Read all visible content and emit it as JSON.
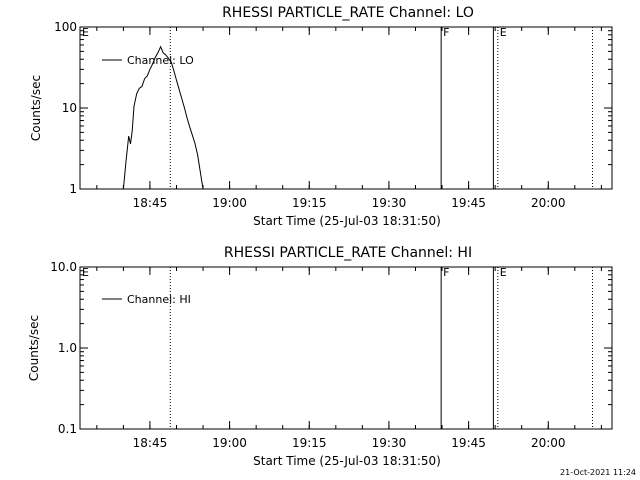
{
  "footer": {
    "timestamp": "21-Oct-2021 11:24"
  },
  "chart_data": [
    {
      "type": "line",
      "title": "RHESSI PARTICLE_RATE Channel: LO",
      "xlabel": "Start Time (25-Jul-03 18:31:50)",
      "ylabel": "Counts/sec",
      "y_scale": "log",
      "ylim": [
        1,
        100
      ],
      "y_ticks": [
        {
          "value": 1,
          "label": "1"
        },
        {
          "value": 10,
          "label": "10"
        },
        {
          "value": 100,
          "label": "100"
        }
      ],
      "xlim": [
        "18:31:50",
        "20:12:00"
      ],
      "x_ticks": [
        {
          "time": "18:45",
          "label": "18:45"
        },
        {
          "time": "19:00",
          "label": "19:00"
        },
        {
          "time": "19:15",
          "label": "19:15"
        },
        {
          "time": "19:30",
          "label": "19:30"
        },
        {
          "time": "19:45",
          "label": "19:45"
        },
        {
          "time": "20:00",
          "label": "20:00"
        }
      ],
      "legend": {
        "position": "top-left",
        "entries": [
          "Channel: LO"
        ]
      },
      "markers": [
        {
          "time": "18:48:50",
          "style": "dotted",
          "label": ""
        },
        {
          "time": "19:39:50",
          "style": "solid",
          "label": "F"
        },
        {
          "time": "19:49:40",
          "style": "solid",
          "label": ""
        },
        {
          "time": "19:50:30",
          "style": "dotted",
          "label": "E"
        },
        {
          "time": "20:08:20",
          "style": "dotted",
          "label": ""
        }
      ],
      "corner_label": "E",
      "color": "#000000",
      "series": [
        {
          "name": "Channel: LO",
          "points": [
            [
              "18:40:00",
              1.0
            ],
            [
              "18:40:30",
              2.2
            ],
            [
              "18:41:00",
              4.5
            ],
            [
              "18:41:20",
              3.6
            ],
            [
              "18:41:40",
              5.2
            ],
            [
              "18:42:00",
              10.5
            ],
            [
              "18:42:30",
              15.0
            ],
            [
              "18:43:00",
              17.5
            ],
            [
              "18:43:30",
              18.5
            ],
            [
              "18:44:00",
              23.0
            ],
            [
              "18:44:30",
              25.0
            ],
            [
              "18:45:00",
              30.0
            ],
            [
              "18:45:30",
              35.0
            ],
            [
              "18:46:00",
              42.0
            ],
            [
              "18:46:30",
              48.0
            ],
            [
              "18:47:00",
              57.0
            ],
            [
              "18:47:30",
              48.0
            ],
            [
              "18:48:00",
              45.0
            ],
            [
              "18:48:30",
              41.0
            ],
            [
              "18:49:00",
              37.0
            ],
            [
              "18:49:30",
              29.0
            ],
            [
              "18:50:00",
              22.0
            ],
            [
              "18:50:30",
              17.0
            ],
            [
              "18:51:00",
              13.0
            ],
            [
              "18:51:30",
              10.0
            ],
            [
              "18:52:00",
              7.5
            ],
            [
              "18:52:30",
              5.8
            ],
            [
              "18:53:00",
              4.6
            ],
            [
              "18:53:30",
              3.6
            ],
            [
              "18:54:00",
              2.6
            ],
            [
              "18:54:30",
              1.6
            ],
            [
              "18:55:00",
              1.0
            ]
          ]
        }
      ]
    },
    {
      "type": "line",
      "title": "RHESSI PARTICLE_RATE Channel: HI",
      "xlabel": "Start Time (25-Jul-03 18:31:50)",
      "ylabel": "Counts/sec",
      "y_scale": "log",
      "ylim": [
        0.1,
        10
      ],
      "y_ticks": [
        {
          "value": 0.1,
          "label": "0.1"
        },
        {
          "value": 1,
          "label": "1.0"
        },
        {
          "value": 10,
          "label": "10.0"
        }
      ],
      "xlim": [
        "18:31:50",
        "20:12:00"
      ],
      "x_ticks": [
        {
          "time": "18:45",
          "label": "18:45"
        },
        {
          "time": "19:00",
          "label": "19:00"
        },
        {
          "time": "19:15",
          "label": "19:15"
        },
        {
          "time": "19:30",
          "label": "19:30"
        },
        {
          "time": "19:45",
          "label": "19:45"
        },
        {
          "time": "20:00",
          "label": "20:00"
        }
      ],
      "legend": {
        "position": "top-left",
        "entries": [
          "Channel: HI"
        ]
      },
      "markers": [
        {
          "time": "18:48:50",
          "style": "dotted",
          "label": ""
        },
        {
          "time": "19:39:50",
          "style": "solid",
          "label": "F"
        },
        {
          "time": "19:49:40",
          "style": "solid",
          "label": ""
        },
        {
          "time": "19:50:30",
          "style": "dotted",
          "label": "E"
        },
        {
          "time": "20:08:20",
          "style": "dotted",
          "label": ""
        }
      ],
      "corner_label": "E",
      "color": "#000000",
      "series": [
        {
          "name": "Channel: HI",
          "points": []
        }
      ]
    }
  ]
}
